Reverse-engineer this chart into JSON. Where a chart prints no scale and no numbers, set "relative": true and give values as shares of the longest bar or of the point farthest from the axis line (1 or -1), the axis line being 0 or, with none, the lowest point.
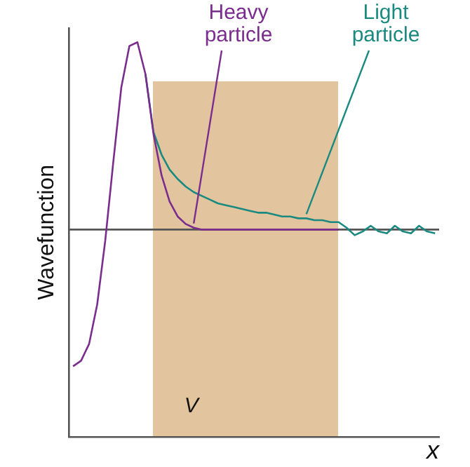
{
  "chart_data": {
    "type": "line",
    "relative": true,
    "xlabel": "x",
    "ylabel": "Wavefunction",
    "tick_labels": false,
    "grid": false,
    "legend": false,
    "marker": "none",
    "line_style": "solid",
    "categories": [
      null,
      null,
      null,
      null,
      null,
      null,
      null,
      null,
      null,
      null,
      null,
      null,
      null,
      null,
      null,
      null,
      null,
      null,
      null,
      null,
      null,
      null,
      null,
      null,
      null,
      null,
      null,
      null,
      null,
      null,
      null,
      null,
      null,
      null,
      null,
      null,
      null,
      null,
      null,
      null,
      null,
      null,
      null,
      null,
      null,
      null
    ],
    "series": [
      {
        "name": "Heavy particle",
        "color": "#7b2d8e",
        "values": [
          -0.73,
          -0.7,
          -0.61,
          -0.4,
          -0.06,
          0.36,
          0.76,
          0.98,
          1.0,
          0.83,
          0.51,
          0.29,
          0.15,
          0.07,
          0.03,
          0.01,
          0,
          0,
          0,
          0,
          0,
          0,
          0,
          0,
          0,
          0,
          0,
          0,
          0,
          0,
          0,
          0,
          0,
          0,
          null,
          null,
          null,
          null,
          null,
          null,
          null,
          null,
          null,
          null,
          null,
          null
        ]
      },
      {
        "name": "Light particle",
        "color": "#1a8a80",
        "values": [
          null,
          null,
          null,
          null,
          null,
          null,
          null,
          null,
          null,
          0.83,
          0.52,
          0.4,
          0.32,
          0.27,
          0.23,
          0.2,
          0.18,
          0.16,
          0.14,
          0.13,
          0.12,
          0.11,
          0.1,
          0.09,
          0.09,
          0.08,
          0.07,
          0.07,
          0.06,
          0.06,
          0.05,
          0.05,
          0.04,
          0.04,
          0.01,
          -0.03,
          -0.01,
          0.02,
          -0.01,
          -0.02,
          0.02,
          -0.01,
          -0.02,
          0.02,
          -0.01,
          -0.02
        ]
      }
    ],
    "annotations": [
      "V"
    ]
  }
}
